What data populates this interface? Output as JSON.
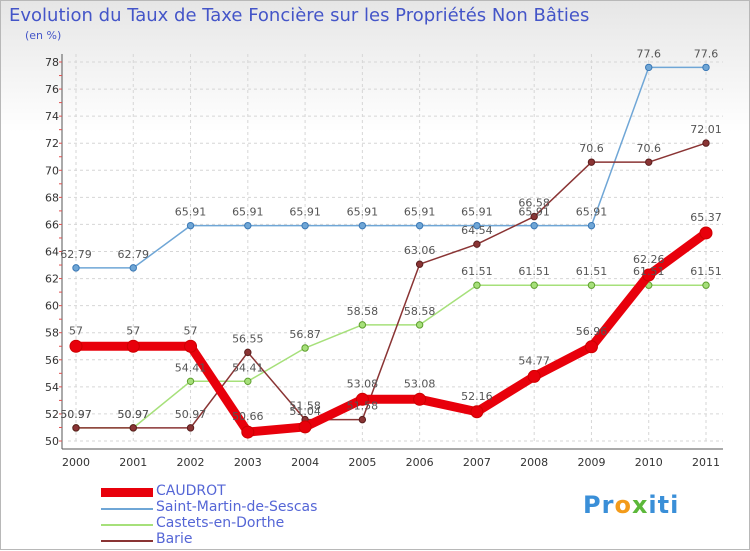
{
  "title": "Evolution du Taux de Taxe Foncière sur les Propriétés Non Bâties",
  "unit_label": "(en %)",
  "logo_text": "Proxiti",
  "chart_data": {
    "type": "line",
    "title": "Evolution du Taux de Taxe Foncière sur les Propriétés Non Bâties",
    "xlabel": "",
    "ylabel": "(en %)",
    "ylim": [
      50,
      78
    ],
    "yticks": [
      50,
      52,
      54,
      56,
      58,
      60,
      62,
      64,
      66,
      68,
      70,
      72,
      74,
      76,
      78
    ],
    "grid": true,
    "legend_position": "bottom-left",
    "x": [
      "2000",
      "2001",
      "2002",
      "2003",
      "2004",
      "2005",
      "2006",
      "2007",
      "2008",
      "2009",
      "2010",
      "2011"
    ],
    "series": [
      {
        "name": "CAUDROT",
        "color": "#e8000b",
        "values": [
          57,
          57,
          57,
          50.66,
          51.04,
          53.08,
          53.08,
          52.16,
          54.77,
          56.96,
          62.26,
          65.37
        ],
        "labels": [
          "57",
          "57",
          "57",
          "50.66",
          "51.04",
          "53.08",
          "53.08",
          "52.16",
          "54.77",
          "56.96",
          "62.26",
          "65.37"
        ]
      },
      {
        "name": "Saint-Martin-de-Sescas",
        "color": "#6fa6d6",
        "values": [
          62.79,
          62.79,
          65.91,
          65.91,
          65.91,
          65.91,
          65.91,
          65.91,
          65.91,
          65.91,
          77.6,
          77.6
        ],
        "labels": [
          "62.79",
          "62.79",
          "65.91",
          "65.91",
          "65.91",
          "65.91",
          "65.91",
          "65.91",
          "65.91",
          "65.91",
          "77.6",
          "77.6"
        ]
      },
      {
        "name": "Castets-en-Dorthe",
        "color": "#a6e07a",
        "values": [
          50.97,
          50.97,
          54.41,
          54.41,
          56.87,
          58.58,
          58.58,
          61.51,
          61.51,
          61.51,
          61.51,
          61.51
        ],
        "labels": [
          "50.97",
          "50.97",
          "54.41",
          "54.41",
          "56.87",
          "58.58",
          "58.58",
          "61.51",
          "61.51",
          "61.51",
          "61.51",
          "61.51"
        ]
      },
      {
        "name": "Barie",
        "color": "#8a3434",
        "values": [
          50.97,
          50.97,
          50.97,
          56.55,
          51.58,
          51.58,
          63.06,
          64.54,
          66.58,
          70.6,
          70.6,
          72.01
        ],
        "labels": [
          "50.97",
          "50.97",
          "50.97",
          "56.55",
          "51.58",
          "51.58",
          "63.06",
          "64.54",
          "66.58",
          "70.6",
          "70.6",
          "72.01"
        ]
      }
    ]
  }
}
